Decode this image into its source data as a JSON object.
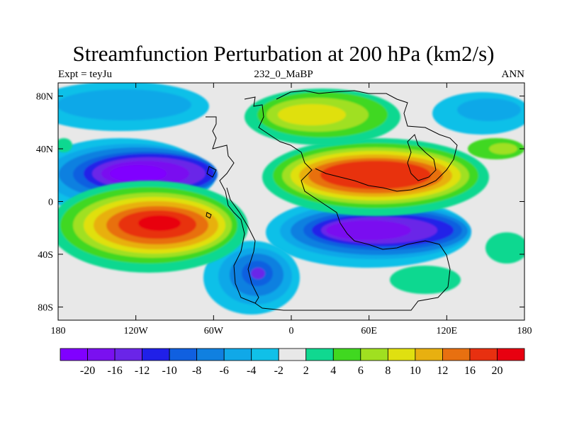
{
  "title": "Streamfunction Perturbation at 200 hPa (km2/s)",
  "left_string": "Expt = teyJu",
  "center_string": "232_0_MaBP",
  "right_string": "ANN",
  "map": {
    "lon_range": [
      -180,
      180
    ],
    "lat_range": [
      -90,
      90
    ],
    "x_ticks": [
      {
        "lon": -180,
        "label": "180"
      },
      {
        "lon": -120,
        "label": "120W"
      },
      {
        "lon": -60,
        "label": "60W"
      },
      {
        "lon": 0,
        "label": "0"
      },
      {
        "lon": 60,
        "label": "60E"
      },
      {
        "lon": 120,
        "label": "120E"
      },
      {
        "lon": 180,
        "label": "180"
      }
    ],
    "y_ticks": [
      {
        "lat": 80,
        "label": "80N"
      },
      {
        "lat": 40,
        "label": "40N"
      },
      {
        "lat": 0,
        "label": "0"
      },
      {
        "lat": -40,
        "label": "40S"
      },
      {
        "lat": -80,
        "label": "80S"
      }
    ]
  },
  "colorbar": {
    "colors": [
      "#8000ff",
      "#7a10f0",
      "#6a25e8",
      "#2020e8",
      "#1060e0",
      "#1080e0",
      "#10a8e8",
      "#10c0e8",
      "#e8e8e8",
      "#10d890",
      "#40d820",
      "#a0e020",
      "#e0e010",
      "#e8b010",
      "#e87010",
      "#e83010",
      "#e80010"
    ],
    "labels": [
      "-20",
      "-16",
      "-12",
      "-10",
      "-8",
      "-6",
      "-4",
      "-2",
      "2",
      "4",
      "6",
      "8",
      "10",
      "12",
      "16",
      "20"
    ]
  },
  "field_blobs": [
    {
      "lon": -95,
      "lat": 22,
      "rx": 48,
      "ry": 18,
      "level": -20
    },
    {
      "lon": 55,
      "lat": -22,
      "rx": 50,
      "ry": 17,
      "level": -20
    },
    {
      "lon": -30,
      "lat": -55,
      "rx": 22,
      "ry": 20,
      "level": -12
    },
    {
      "lon": -100,
      "lat": -15,
      "rx": 42,
      "ry": 22,
      "level": 20
    },
    {
      "lon": 60,
      "lat": 22,
      "rx": 48,
      "ry": 20,
      "level": 20
    },
    {
      "lon": 30,
      "lat": 65,
      "rx": 30,
      "ry": 15,
      "level": 10
    },
    {
      "lon": -150,
      "lat": 65,
      "rx": 35,
      "ry": 15,
      "level": -6
    },
    {
      "lon": 150,
      "lat": 65,
      "rx": 30,
      "ry": 12,
      "level": -6
    }
  ]
}
